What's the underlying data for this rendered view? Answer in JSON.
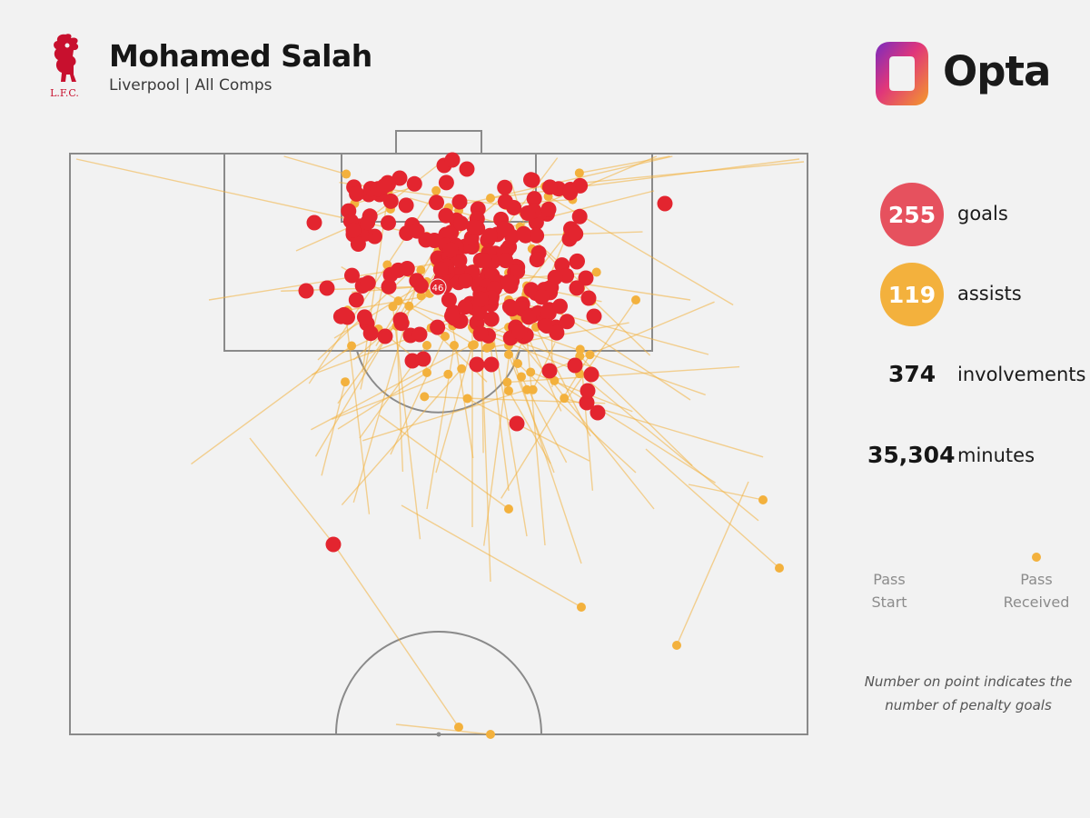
{
  "header": {
    "title": "Mohamed Salah",
    "subtitle": "Liverpool | All Comps",
    "club_crest_text": "L.F.C.",
    "brand": "Opta"
  },
  "stats": {
    "goals_value": "255",
    "goals_label": "goals",
    "assists_value": "119",
    "assists_label": "assists",
    "involvements_value": "374",
    "involvements_label": "involvements",
    "minutes_value": "35,304",
    "minutes_label": "minutes"
  },
  "legend": {
    "start_label": "Pass\nStart",
    "end_label": "Pass\nReceived"
  },
  "note": "Number on point indicates the number of penalty goals",
  "penalty_label": "46",
  "colors": {
    "background": "#f2f2f2",
    "goal": "#e3252f",
    "assist": "#f3b13d",
    "pitch_lines": "#8a8a8a",
    "crest": "#c8102e"
  }
}
